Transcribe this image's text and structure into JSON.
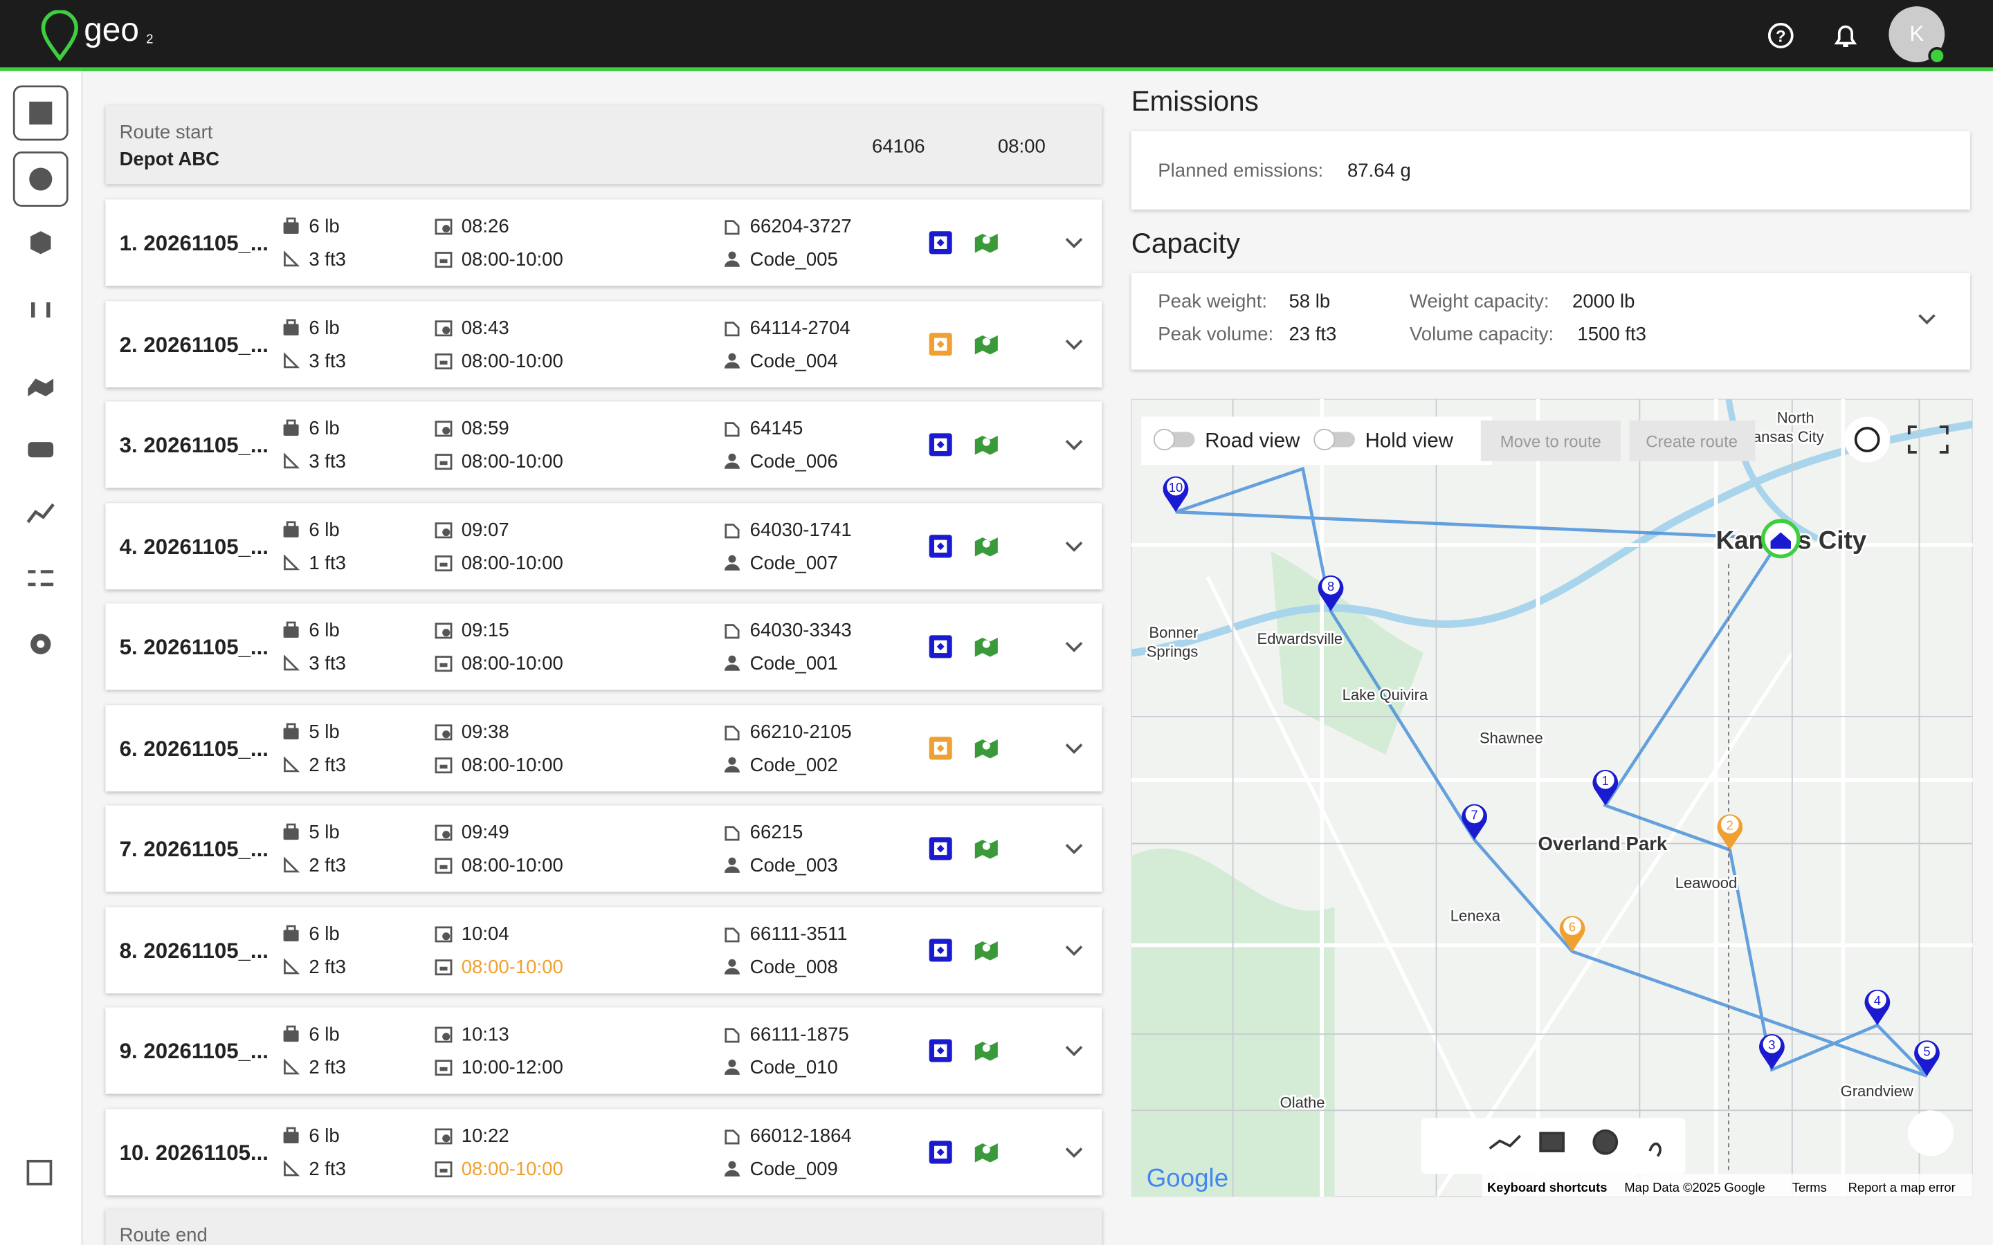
{
  "header": {
    "logo": "geo",
    "logo_sub": "2",
    "avatar": "K"
  },
  "route_start": {
    "label": "Route start",
    "name": "Depot ABC",
    "zip": "64106",
    "time": "08:00"
  },
  "stops": [
    {
      "title": "1. 20261105_...",
      "weight": "6 lb",
      "volume": "3 ft3",
      "eta": "08:26",
      "window": "08:00-10:00",
      "late": false,
      "zip": "66204-3727",
      "code": "Code_005",
      "status_color": "#1a1ad0"
    },
    {
      "title": "2. 20261105_...",
      "weight": "6 lb",
      "volume": "3 ft3",
      "eta": "08:43",
      "window": "08:00-10:00",
      "late": false,
      "zip": "64114-2704",
      "code": "Code_004",
      "status_color": "#f0a030"
    },
    {
      "title": "3. 20261105_...",
      "weight": "6 lb",
      "volume": "3 ft3",
      "eta": "08:59",
      "window": "08:00-10:00",
      "late": false,
      "zip": "64145",
      "code": "Code_006",
      "status_color": "#1a1ad0"
    },
    {
      "title": "4. 20261105_...",
      "weight": "6 lb",
      "volume": "1 ft3",
      "eta": "09:07",
      "window": "08:00-10:00",
      "late": false,
      "zip": "64030-1741",
      "code": "Code_007",
      "status_color": "#1a1ad0"
    },
    {
      "title": "5. 20261105_...",
      "weight": "6 lb",
      "volume": "3 ft3",
      "eta": "09:15",
      "window": "08:00-10:00",
      "late": false,
      "zip": "64030-3343",
      "code": "Code_001",
      "status_color": "#1a1ad0"
    },
    {
      "title": "6. 20261105_...",
      "weight": "5 lb",
      "volume": "2 ft3",
      "eta": "09:38",
      "window": "08:00-10:00",
      "late": false,
      "zip": "66210-2105",
      "code": "Code_002",
      "status_color": "#f0a030"
    },
    {
      "title": "7. 20261105_...",
      "weight": "5 lb",
      "volume": "2 ft3",
      "eta": "09:49",
      "window": "08:00-10:00",
      "late": false,
      "zip": "66215",
      "code": "Code_003",
      "status_color": "#1a1ad0"
    },
    {
      "title": "8. 20261105_...",
      "weight": "6 lb",
      "volume": "2 ft3",
      "eta": "10:04",
      "window": "08:00-10:00",
      "late": true,
      "zip": "66111-3511",
      "code": "Code_008",
      "status_color": "#1a1ad0"
    },
    {
      "title": "9. 20261105_...",
      "weight": "6 lb",
      "volume": "2 ft3",
      "eta": "10:13",
      "window": "10:00-12:00",
      "late": false,
      "zip": "66111-1875",
      "code": "Code_010",
      "status_color": "#1a1ad0"
    },
    {
      "title": "10. 20261105...",
      "weight": "6 lb",
      "volume": "2 ft3",
      "eta": "10:22",
      "window": "08:00-10:00",
      "late": true,
      "zip": "66012-1864",
      "code": "Code_009",
      "status_color": "#1a1ad0"
    }
  ],
  "route_end": {
    "label": "Route end"
  },
  "emissions": {
    "title": "Emissions",
    "label": "Planned emissions:",
    "value": "87.64 g"
  },
  "capacity": {
    "title": "Capacity",
    "peak_weight_label": "Peak weight:",
    "peak_weight": "58 lb",
    "peak_volume_label": "Peak volume:",
    "peak_volume": "23 ft3",
    "weight_capacity_label": "Weight capacity:",
    "weight_capacity": "2000 lb",
    "volume_capacity_label": "Volume capacity:",
    "volume_capacity": "1500 ft3"
  },
  "map": {
    "toggles": [
      "Road view",
      "Hold view"
    ],
    "buttons": [
      "Move to route",
      "Create route"
    ],
    "places": [
      "North",
      "Kansas City",
      "Kan",
      "s City",
      "Bonner",
      "Springs",
      "Edwardsville",
      "Lake Quivira",
      "Shawnee",
      "Overland Park",
      "Leawood",
      "Lenexa",
      "Olathe",
      "Grandview"
    ],
    "pins": [
      "1",
      "2",
      "3",
      "4",
      "5",
      "6",
      "7",
      "8",
      "10"
    ],
    "logo": "Google",
    "attribution": [
      "Keyboard shortcuts",
      "Map Data ©2025 Google",
      "Terms",
      "Report a map error"
    ]
  }
}
